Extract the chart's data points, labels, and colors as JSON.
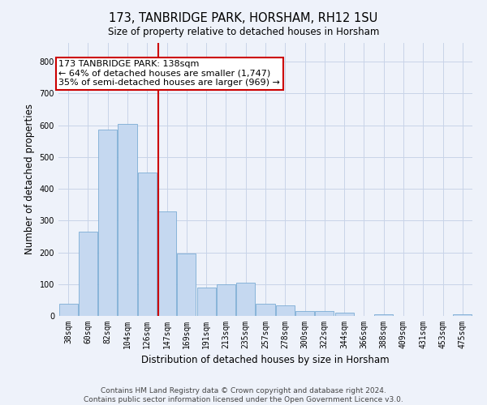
{
  "title": "173, TANBRIDGE PARK, HORSHAM, RH12 1SU",
  "subtitle": "Size of property relative to detached houses in Horsham",
  "xlabel": "Distribution of detached houses by size in Horsham",
  "ylabel": "Number of detached properties",
  "bar_labels": [
    "38sqm",
    "60sqm",
    "82sqm",
    "104sqm",
    "126sqm",
    "147sqm",
    "169sqm",
    "191sqm",
    "213sqm",
    "235sqm",
    "257sqm",
    "278sqm",
    "300sqm",
    "322sqm",
    "344sqm",
    "366sqm",
    "388sqm",
    "409sqm",
    "431sqm",
    "453sqm",
    "475sqm"
  ],
  "bar_values": [
    38,
    265,
    585,
    605,
    450,
    328,
    195,
    90,
    100,
    105,
    38,
    33,
    15,
    16,
    10,
    0,
    6,
    0,
    0,
    0,
    6
  ],
  "bar_color": "#c5d8f0",
  "bar_edge_color": "#7bacd4",
  "property_label": "173 TANBRIDGE PARK: 138sqm",
  "annotation_line1": "← 64% of detached houses are smaller (1,747)",
  "annotation_line2": "35% of semi-detached houses are larger (969) →",
  "vline_color": "#cc0000",
  "vline_x_index": 4.57,
  "ylim": [
    0,
    860
  ],
  "yticks": [
    0,
    100,
    200,
    300,
    400,
    500,
    600,
    700,
    800
  ],
  "footer_line1": "Contains HM Land Registry data © Crown copyright and database right 2024.",
  "footer_line2": "Contains public sector information licensed under the Open Government Licence v3.0.",
  "bg_color": "#eef2fa",
  "plot_bg_color": "#eef2fa",
  "title_fontsize": 10.5,
  "axis_label_fontsize": 8.5,
  "tick_fontsize": 7,
  "footer_fontsize": 6.5,
  "annotation_fontsize": 8
}
